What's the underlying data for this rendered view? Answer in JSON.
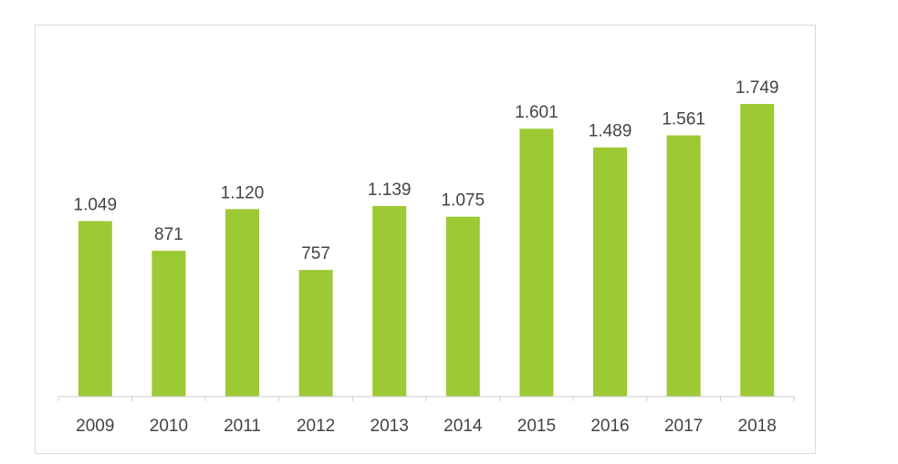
{
  "chart_data": {
    "type": "bar",
    "categories": [
      "2009",
      "2010",
      "2011",
      "2012",
      "2013",
      "2014",
      "2015",
      "2016",
      "2017",
      "2018"
    ],
    "values": [
      1049,
      871,
      1120,
      757,
      1139,
      1075,
      1601,
      1489,
      1561,
      1749
    ],
    "value_labels": [
      "1.049",
      "871",
      "1.120",
      "757",
      "1.139",
      "1.075",
      "1.601",
      "1.489",
      "1.561",
      "1.749"
    ],
    "ylim": [
      0,
      1749
    ],
    "grid": false,
    "legend": "none",
    "colors": {
      "bar": "#9dc934",
      "axis": "#cccccc"
    }
  }
}
